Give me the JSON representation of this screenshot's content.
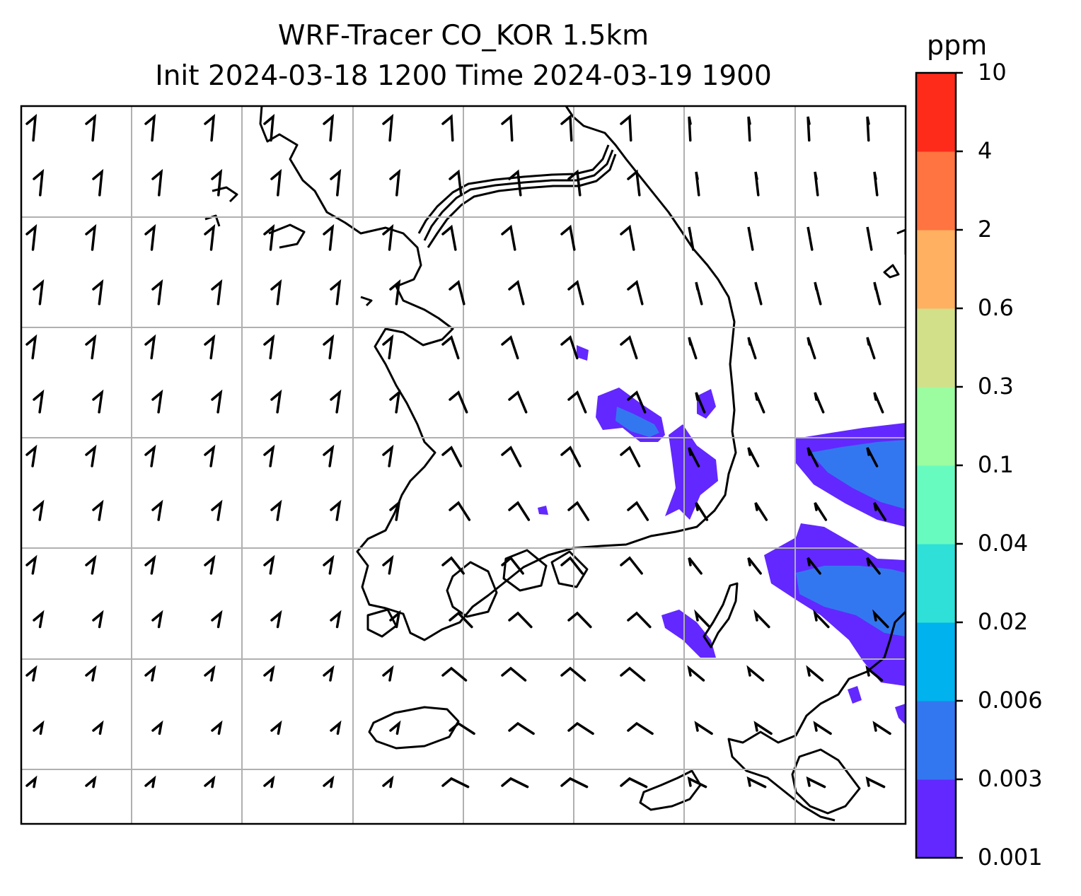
{
  "title": {
    "line1": "WRF-Tracer CO_KOR 1.5km",
    "line2": "Init 2024-03-18 1200 Time 2024-03-19 1900"
  },
  "colorbar": {
    "unit": "ppm",
    "levels": [
      "0.001",
      "0.003",
      "0.006",
      "0.02",
      "0.04",
      "0.1",
      "0.3",
      "0.6",
      "2",
      "4",
      "10"
    ],
    "colors": [
      "#6228ff",
      "#3377f0",
      "#00b2ee",
      "#2ee0d8",
      "#68fbbf",
      "#9bfca0",
      "#d2e08a",
      "#ffb061",
      "#ff7440",
      "#ff2b1a"
    ]
  },
  "map": {
    "coastline_color": "#000000",
    "grid_color": "#b0b0b0",
    "wind_barb_color": "#000000",
    "tracer_field_colors_visible": [
      "#6228ff",
      "#3377f0"
    ]
  }
}
